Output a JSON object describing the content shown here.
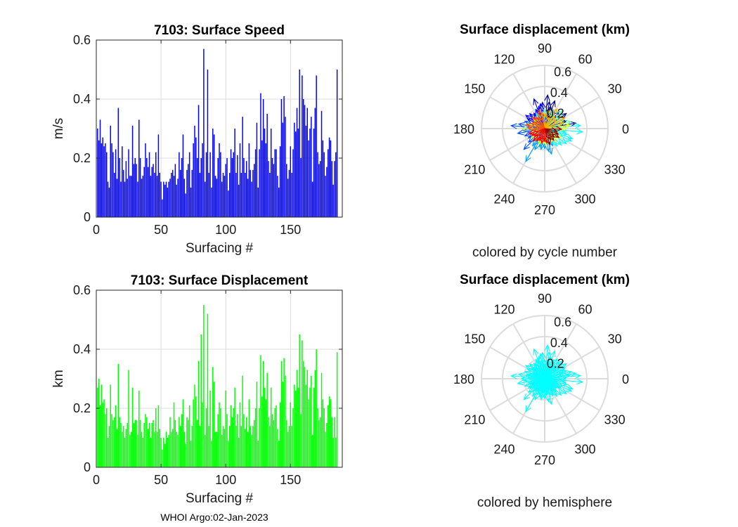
{
  "footer": "WHOI Argo:02-Jan-2023",
  "colors": {
    "speed_bar": "#0000ff",
    "disp_bar": "#00ff00",
    "hemisphere": "#00ffff",
    "grid": "#dcdcdc",
    "axis": "#262626"
  },
  "chart_data": [
    {
      "type": "bar",
      "title": "7103: Surface Speed",
      "xlabel": "Surfacing #",
      "ylabel": "m/s",
      "xlim": [
        0,
        190
      ],
      "ylim": [
        0,
        0.6
      ],
      "xticks": [
        "0",
        "50",
        "100",
        "150"
      ],
      "yticks": [
        "0",
        "0.2",
        "0.4",
        "0.6"
      ],
      "values": [
        0.3,
        0.26,
        0.33,
        0.25,
        0.27,
        0.24,
        0.25,
        0.22,
        0.12,
        0.1,
        0.31,
        0.25,
        0.22,
        0.15,
        0.23,
        0.13,
        0.37,
        0.2,
        0.12,
        0.24,
        0.16,
        0.12,
        0.19,
        0.13,
        0.23,
        0.14,
        0.14,
        0.31,
        0.18,
        0.2,
        0.18,
        0.12,
        0.33,
        0.2,
        0.13,
        0.14,
        0.17,
        0.25,
        0.2,
        0.17,
        0.22,
        0.14,
        0.17,
        0.18,
        0.15,
        0.22,
        0.14,
        0.28,
        0.15,
        0.12,
        0.06,
        0.12,
        0.11,
        0.12,
        0.1,
        0.12,
        0.13,
        0.15,
        0.16,
        0.14,
        0.18,
        0.11,
        0.13,
        0.22,
        0.16,
        0.2,
        0.28,
        0.13,
        0.08,
        0.16,
        0.18,
        0.22,
        0.1,
        0.16,
        0.25,
        0.31,
        0.27,
        0.2,
        0.38,
        0.15,
        0.2,
        0.25,
        0.57,
        0.12,
        0.22,
        0.5,
        0.15,
        0.22,
        0.1,
        0.3,
        0.28,
        0.14,
        0.13,
        0.2,
        0.25,
        0.22,
        0.12,
        0.15,
        0.14,
        0.18,
        0.2,
        0.09,
        0.15,
        0.23,
        0.2,
        0.22,
        0.3,
        0.15,
        0.21,
        0.11,
        0.25,
        0.15,
        0.34,
        0.2,
        0.15,
        0.19,
        0.13,
        0.25,
        0.16,
        0.12,
        0.16,
        0.18,
        0.23,
        0.32,
        0.1,
        0.23,
        0.42,
        0.26,
        0.4,
        0.3,
        0.25,
        0.35,
        0.19,
        0.15,
        0.3,
        0.2,
        0.18,
        0.23,
        0.23,
        0.14,
        0.1,
        0.24,
        0.4,
        0.32,
        0.41,
        0.34,
        0.18,
        0.13,
        0.16,
        0.24,
        0.15,
        0.23,
        0.32,
        0.29,
        0.37,
        0.3,
        0.5,
        0.2,
        0.48,
        0.4,
        0.38,
        0.31,
        0.37,
        0.26,
        0.3,
        0.34,
        0.12,
        0.3,
        0.37,
        0.48,
        0.22,
        0.18,
        0.19,
        0.36,
        0.26,
        0.22,
        0.14,
        0.17,
        0.23,
        0.27,
        0.26,
        0.19,
        0.11,
        0.19,
        0.22,
        0.5
      ],
      "bar_color": "#0000ff"
    },
    {
      "type": "bar",
      "title": "7103: Surface Displacement",
      "xlabel": "Surfacing #",
      "ylabel": "km",
      "xlim": [
        0,
        190
      ],
      "ylim": [
        0,
        0.6
      ],
      "xticks": [
        "0",
        "50",
        "100",
        "150"
      ],
      "yticks": [
        "0",
        "0.2",
        "0.4",
        "0.6"
      ],
      "values": [
        0.27,
        0.3,
        0.21,
        0.28,
        0.22,
        0.23,
        0.18,
        0.2,
        0.1,
        0.14,
        0.28,
        0.18,
        0.16,
        0.17,
        0.21,
        0.13,
        0.35,
        0.17,
        0.15,
        0.12,
        0.14,
        0.1,
        0.13,
        0.15,
        0.33,
        0.11,
        0.12,
        0.27,
        0.15,
        0.16,
        0.16,
        0.11,
        0.26,
        0.16,
        0.12,
        0.1,
        0.15,
        0.18,
        0.17,
        0.13,
        0.15,
        0.1,
        0.15,
        0.16,
        0.12,
        0.2,
        0.12,
        0.21,
        0.13,
        0.1,
        0.06,
        0.1,
        0.08,
        0.12,
        0.1,
        0.11,
        0.17,
        0.12,
        0.13,
        0.22,
        0.16,
        0.12,
        0.11,
        0.17,
        0.14,
        0.18,
        0.23,
        0.12,
        0.08,
        0.17,
        0.16,
        0.21,
        0.09,
        0.14,
        0.23,
        0.28,
        0.24,
        0.16,
        0.36,
        0.14,
        0.45,
        0.22,
        0.55,
        0.11,
        0.2,
        0.52,
        0.14,
        0.26,
        0.09,
        0.34,
        0.29,
        0.12,
        0.12,
        0.18,
        0.22,
        0.2,
        0.11,
        0.14,
        0.13,
        0.26,
        0.18,
        0.09,
        0.14,
        0.21,
        0.17,
        0.2,
        0.27,
        0.14,
        0.18,
        0.1,
        0.22,
        0.14,
        0.31,
        0.18,
        0.13,
        0.17,
        0.12,
        0.23,
        0.14,
        0.11,
        0.14,
        0.16,
        0.2,
        0.29,
        0.09,
        0.2,
        0.38,
        0.24,
        0.36,
        0.27,
        0.23,
        0.32,
        0.17,
        0.14,
        0.27,
        0.18,
        0.16,
        0.2,
        0.21,
        0.13,
        0.09,
        0.22,
        0.36,
        0.29,
        0.37,
        0.31,
        0.16,
        0.12,
        0.14,
        0.22,
        0.14,
        0.2,
        0.28,
        0.26,
        0.33,
        0.27,
        0.45,
        0.18,
        0.43,
        0.36,
        0.34,
        0.28,
        0.33,
        0.23,
        0.27,
        0.31,
        0.11,
        0.27,
        0.33,
        0.4,
        0.2,
        0.16,
        0.17,
        0.32,
        0.23,
        0.2,
        0.12,
        0.15,
        0.21,
        0.24,
        0.23,
        0.17,
        0.1,
        0.17,
        0.1,
        0.39
      ],
      "bar_color": "#00ff00"
    },
    {
      "type": "polar-compass",
      "title": "Surface displacement (km)",
      "caption": "colored by cycle number",
      "rlim": [
        0,
        0.6
      ],
      "rticks": [
        "0.2",
        "0.4",
        "0.6"
      ],
      "theta_ticks": [
        "0",
        "30",
        "60",
        "90",
        "120",
        "150",
        "180",
        "210",
        "240",
        "270",
        "300",
        "330"
      ],
      "color_by": "cycle number",
      "vectors_deg_r": [
        [
          10,
          0.3
        ],
        [
          20,
          0.22
        ],
        [
          35,
          0.25
        ],
        [
          50,
          0.21
        ],
        [
          60,
          0.18
        ],
        [
          70,
          0.28
        ],
        [
          75,
          0.22
        ],
        [
          80,
          0.26
        ],
        [
          85,
          0.32
        ],
        [
          95,
          0.25
        ],
        [
          100,
          0.24
        ],
        [
          105,
          0.22
        ],
        [
          110,
          0.3
        ],
        [
          115,
          0.2
        ],
        [
          125,
          0.18
        ],
        [
          135,
          0.2
        ],
        [
          145,
          0.22
        ],
        [
          150,
          0.19
        ],
        [
          160,
          0.2
        ],
        [
          170,
          0.25
        ],
        [
          175,
          0.32
        ],
        [
          185,
          0.2
        ],
        [
          190,
          0.26
        ],
        [
          200,
          0.2
        ],
        [
          210,
          0.18
        ],
        [
          220,
          0.2
        ],
        [
          225,
          0.28
        ],
        [
          235,
          0.2
        ],
        [
          240,
          0.36
        ],
        [
          245,
          0.22
        ],
        [
          255,
          0.18
        ],
        [
          260,
          0.2
        ],
        [
          270,
          0.19
        ],
        [
          280,
          0.22
        ],
        [
          285,
          0.25
        ],
        [
          295,
          0.18
        ],
        [
          305,
          0.2
        ],
        [
          315,
          0.22
        ],
        [
          325,
          0.25
        ],
        [
          335,
          0.28
        ],
        [
          340,
          0.28
        ],
        [
          345,
          0.22
        ],
        [
          350,
          0.2
        ],
        [
          355,
          0.36
        ],
        [
          5,
          0.34
        ],
        [
          15,
          0.26
        ],
        [
          25,
          0.2
        ],
        [
          40,
          0.18
        ],
        [
          45,
          0.24
        ],
        [
          55,
          0.16
        ],
        [
          65,
          0.2
        ],
        [
          90,
          0.18
        ],
        [
          120,
          0.16
        ],
        [
          140,
          0.14
        ],
        [
          155,
          0.12
        ],
        [
          165,
          0.16
        ],
        [
          180,
          0.22
        ],
        [
          195,
          0.14
        ],
        [
          205,
          0.12
        ],
        [
          215,
          0.16
        ],
        [
          230,
          0.14
        ],
        [
          250,
          0.16
        ],
        [
          265,
          0.14
        ],
        [
          275,
          0.16
        ],
        [
          290,
          0.12
        ],
        [
          300,
          0.14
        ],
        [
          310,
          0.16
        ],
        [
          320,
          0.14
        ],
        [
          330,
          0.18
        ],
        [
          0,
          0.2
        ],
        [
          8,
          0.24
        ],
        [
          18,
          0.18
        ],
        [
          28,
          0.22
        ],
        [
          38,
          0.14
        ],
        [
          48,
          0.16
        ],
        [
          58,
          0.22
        ],
        [
          68,
          0.12
        ],
        [
          78,
          0.18
        ],
        [
          88,
          0.14
        ],
        [
          98,
          0.16
        ],
        [
          108,
          0.18
        ],
        [
          118,
          0.12
        ],
        [
          128,
          0.14
        ],
        [
          138,
          0.16
        ],
        [
          148,
          0.12
        ],
        [
          158,
          0.14
        ],
        [
          168,
          0.18
        ],
        [
          178,
          0.16
        ],
        [
          188,
          0.12
        ],
        [
          198,
          0.16
        ],
        [
          208,
          0.14
        ],
        [
          218,
          0.12
        ],
        [
          228,
          0.16
        ],
        [
          238,
          0.14
        ],
        [
          248,
          0.12
        ],
        [
          258,
          0.14
        ],
        [
          268,
          0.12
        ],
        [
          278,
          0.14
        ],
        [
          288,
          0.16
        ],
        [
          298,
          0.12
        ],
        [
          308,
          0.14
        ],
        [
          318,
          0.12
        ],
        [
          328,
          0.16
        ],
        [
          338,
          0.14
        ],
        [
          348,
          0.12
        ],
        [
          358,
          0.16
        ]
      ]
    },
    {
      "type": "polar-compass",
      "title": "Surface displacement (km)",
      "caption": "colored by hemisphere",
      "rlim": [
        0,
        0.6
      ],
      "rticks": [
        "0.2",
        "0.4",
        "0.6"
      ],
      "theta_ticks": [
        "0",
        "30",
        "60",
        "90",
        "120",
        "150",
        "180",
        "210",
        "240",
        "270",
        "300",
        "330"
      ],
      "color_by": "hemisphere",
      "vectors_deg_r": [
        [
          10,
          0.3
        ],
        [
          20,
          0.22
        ],
        [
          35,
          0.25
        ],
        [
          50,
          0.21
        ],
        [
          60,
          0.18
        ],
        [
          70,
          0.28
        ],
        [
          75,
          0.22
        ],
        [
          80,
          0.26
        ],
        [
          85,
          0.32
        ],
        [
          95,
          0.25
        ],
        [
          100,
          0.24
        ],
        [
          105,
          0.22
        ],
        [
          110,
          0.3
        ],
        [
          115,
          0.2
        ],
        [
          125,
          0.18
        ],
        [
          135,
          0.2
        ],
        [
          145,
          0.22
        ],
        [
          150,
          0.19
        ],
        [
          160,
          0.2
        ],
        [
          170,
          0.25
        ],
        [
          175,
          0.32
        ],
        [
          185,
          0.2
        ],
        [
          190,
          0.26
        ],
        [
          200,
          0.2
        ],
        [
          210,
          0.18
        ],
        [
          220,
          0.2
        ],
        [
          225,
          0.28
        ],
        [
          235,
          0.2
        ],
        [
          240,
          0.36
        ],
        [
          245,
          0.22
        ],
        [
          255,
          0.18
        ],
        [
          260,
          0.2
        ],
        [
          270,
          0.19
        ],
        [
          280,
          0.22
        ],
        [
          285,
          0.25
        ],
        [
          295,
          0.18
        ],
        [
          305,
          0.2
        ],
        [
          315,
          0.22
        ],
        [
          325,
          0.25
        ],
        [
          335,
          0.28
        ],
        [
          340,
          0.28
        ],
        [
          345,
          0.22
        ],
        [
          350,
          0.2
        ],
        [
          355,
          0.36
        ],
        [
          5,
          0.34
        ],
        [
          15,
          0.26
        ],
        [
          25,
          0.2
        ],
        [
          40,
          0.18
        ],
        [
          45,
          0.24
        ],
        [
          55,
          0.16
        ],
        [
          65,
          0.2
        ],
        [
          90,
          0.18
        ],
        [
          120,
          0.16
        ],
        [
          140,
          0.14
        ],
        [
          155,
          0.12
        ],
        [
          165,
          0.16
        ],
        [
          180,
          0.22
        ],
        [
          195,
          0.14
        ],
        [
          205,
          0.12
        ],
        [
          215,
          0.16
        ],
        [
          230,
          0.14
        ],
        [
          250,
          0.16
        ],
        [
          265,
          0.14
        ],
        [
          275,
          0.16
        ],
        [
          290,
          0.12
        ],
        [
          300,
          0.14
        ],
        [
          310,
          0.16
        ],
        [
          320,
          0.14
        ],
        [
          330,
          0.18
        ],
        [
          0,
          0.2
        ],
        [
          8,
          0.24
        ],
        [
          18,
          0.18
        ],
        [
          28,
          0.22
        ],
        [
          38,
          0.14
        ],
        [
          48,
          0.16
        ],
        [
          58,
          0.22
        ],
        [
          68,
          0.12
        ],
        [
          78,
          0.18
        ],
        [
          88,
          0.14
        ],
        [
          98,
          0.16
        ],
        [
          108,
          0.18
        ],
        [
          118,
          0.12
        ],
        [
          128,
          0.14
        ],
        [
          138,
          0.16
        ],
        [
          148,
          0.12
        ],
        [
          158,
          0.14
        ],
        [
          168,
          0.18
        ],
        [
          178,
          0.16
        ],
        [
          188,
          0.12
        ],
        [
          198,
          0.16
        ],
        [
          208,
          0.14
        ],
        [
          218,
          0.12
        ],
        [
          228,
          0.16
        ],
        [
          238,
          0.14
        ],
        [
          248,
          0.12
        ],
        [
          258,
          0.14
        ],
        [
          268,
          0.12
        ],
        [
          278,
          0.14
        ],
        [
          288,
          0.16
        ],
        [
          298,
          0.12
        ],
        [
          308,
          0.14
        ],
        [
          318,
          0.12
        ],
        [
          328,
          0.16
        ],
        [
          338,
          0.14
        ],
        [
          348,
          0.12
        ],
        [
          358,
          0.16
        ]
      ]
    }
  ]
}
